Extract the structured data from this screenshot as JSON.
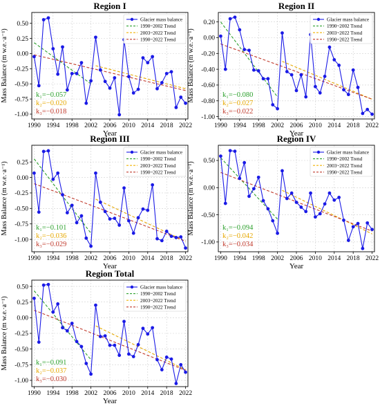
{
  "figure": {
    "ylabel": "Mass Balance (m w.e.·a⁻¹)",
    "xlabel": "Year",
    "legend_location": "top-right",
    "legend_entries": [
      {
        "label": "Glacier mass balance",
        "color": "#1a1ae6",
        "style": "line-marker"
      },
      {
        "label": "1990~2002 Trend",
        "color": "#2ca02c",
        "style": "dashed"
      },
      {
        "label": "2003~2022 Trend",
        "color": "#f2b200",
        "style": "dashed"
      },
      {
        "label": "1990~2022 Trend",
        "color": "#c0392b",
        "style": "dashed"
      }
    ],
    "colors": {
      "series": "#1a1ae6",
      "k1": "#2ca02c",
      "k2": "#e6a800",
      "k3": "#c0392b",
      "grid": "#cfcfcf"
    }
  },
  "chart_data": [
    {
      "type": "line",
      "title": "Region I",
      "x": [
        1990,
        1991,
        1992,
        1993,
        1994,
        1995,
        1996,
        1997,
        1998,
        1999,
        2000,
        2001,
        2002,
        2003,
        2004,
        2005,
        2006,
        2007,
        2008,
        2009,
        2010,
        2011,
        2012,
        2013,
        2014,
        2015,
        2016,
        2017,
        2018,
        2019,
        2020,
        2021,
        2022
      ],
      "values": [
        -0.05,
        -0.53,
        0.56,
        0.59,
        0.08,
        -0.34,
        0.11,
        -0.6,
        -0.33,
        -0.33,
        -0.15,
        -0.82,
        -0.45,
        0.27,
        -0.27,
        -0.46,
        -0.57,
        -0.4,
        -1.01,
        0.23,
        -0.38,
        -0.65,
        -0.59,
        -0.07,
        -0.15,
        -0.05,
        -0.58,
        -0.48,
        -0.33,
        -0.3,
        -0.89,
        -0.72,
        -0.82
      ],
      "xlim": [
        1989.5,
        2022.5
      ],
      "ylim": [
        -1.08,
        0.68
      ],
      "yticks": [
        -1.0,
        -0.75,
        -0.5,
        -0.25,
        0.0,
        0.25,
        0.5
      ],
      "ytick_labels": [
        "-1.00",
        "-0.75",
        "-0.50",
        "-0.25",
        "0.00",
        "0.25",
        "0.50"
      ],
      "xticks": [
        1990,
        1994,
        1998,
        2002,
        2006,
        2010,
        2014,
        2018,
        2022
      ],
      "trends": [
        {
          "name": "1990~2002 Trend",
          "x": [
            1990,
            2002
          ],
          "y": [
            0.18,
            -0.5
          ]
        },
        {
          "name": "2003~2022 Trend",
          "x": [
            2003,
            2022
          ],
          "y": [
            -0.2,
            -0.58
          ]
        },
        {
          "name": "1990~2022 Trend",
          "x": [
            1990,
            2022
          ],
          "y": [
            -0.02,
            -0.61
          ]
        }
      ],
      "slopes": [
        "k₁=−0.057",
        "k₂=−0.020",
        "k₃=−0.018"
      ],
      "grid": true,
      "legend": true
    },
    {
      "type": "line",
      "title": "Region II",
      "x": [
        1990,
        1991,
        1992,
        1993,
        1994,
        1995,
        1996,
        1997,
        1998,
        1999,
        2000,
        2001,
        2002,
        2003,
        2004,
        2005,
        2006,
        2007,
        2008,
        2009,
        2010,
        2011,
        2012,
        2013,
        2014,
        2015,
        2016,
        2017,
        2018,
        2019,
        2020,
        2021,
        2022
      ],
      "values": [
        0.02,
        -0.4,
        0.24,
        0.26,
        0.1,
        -0.15,
        -0.16,
        -0.41,
        -0.42,
        -0.52,
        -0.52,
        -0.85,
        -0.9,
        0.06,
        -0.43,
        -0.47,
        -0.67,
        -0.47,
        -0.75,
        0.04,
        -0.62,
        -0.7,
        -0.49,
        -0.12,
        -0.28,
        -0.35,
        -0.66,
        -0.72,
        -0.41,
        -0.63,
        -0.96,
        -0.91,
        -0.97
      ],
      "xlim": [
        1989.5,
        2022.5
      ],
      "ylim": [
        -1.03,
        0.32
      ],
      "yticks": [
        -1.0,
        -0.8,
        -0.6,
        -0.4,
        -0.2,
        0.0,
        0.2
      ],
      "ytick_labels": [
        "-1.00",
        "-0.80",
        "-0.60",
        "-0.40",
        "-0.20",
        "0.00",
        "0.20"
      ],
      "xticks": [
        1990,
        1994,
        1998,
        2002,
        2006,
        2010,
        2014,
        2018,
        2022
      ],
      "trends": [
        {
          "name": "1990~2002 Trend",
          "x": [
            1990,
            2002
          ],
          "y": [
            0.2,
            -0.75
          ]
        },
        {
          "name": "2003~2022 Trend",
          "x": [
            2003,
            2022
          ],
          "y": [
            -0.3,
            -0.78
          ]
        },
        {
          "name": "1990~2022 Trend",
          "x": [
            1990,
            2022
          ],
          "y": [
            -0.08,
            -0.78
          ]
        }
      ],
      "slopes": [
        "k₁=−0.080",
        "k₂=−0.027",
        "k₃=−0.022"
      ],
      "grid": true,
      "legend": true
    },
    {
      "type": "line",
      "title": "Region III",
      "x": [
        1990,
        1991,
        1992,
        1993,
        1994,
        1995,
        1996,
        1997,
        1998,
        1999,
        2000,
        2001,
        2002,
        2003,
        2004,
        2005,
        2006,
        2007,
        2008,
        2009,
        2010,
        2011,
        2012,
        2013,
        2014,
        2015,
        2016,
        2017,
        2018,
        2019,
        2020,
        2021,
        2022
      ],
      "values": [
        0.07,
        -0.56,
        0.42,
        0.43,
        -0.03,
        0.07,
        -0.28,
        -0.57,
        -0.45,
        -0.73,
        -0.62,
        -0.98,
        -1.11,
        0.07,
        -0.4,
        -0.55,
        -0.67,
        -0.66,
        -0.77,
        -0.17,
        -0.7,
        -0.9,
        -0.65,
        -0.51,
        -0.53,
        -0.12,
        -0.99,
        -1.02,
        -0.87,
        -0.95,
        -0.97,
        -0.96,
        -1.14
      ],
      "xlim": [
        1989.5,
        2022.5
      ],
      "ylim": [
        -1.2,
        0.52
      ],
      "yticks": [
        -1.0,
        -0.75,
        -0.5,
        -0.25,
        0.0,
        0.25
      ],
      "ytick_labels": [
        "-1.00",
        "-0.75",
        "-0.50",
        "-0.25",
        "0.00",
        "0.25"
      ],
      "xticks": [
        1990,
        1994,
        1998,
        2002,
        2006,
        2010,
        2014,
        2018,
        2022
      ],
      "trends": [
        {
          "name": "1990~2002 Trend",
          "x": [
            1990,
            2002
          ],
          "y": [
            0.3,
            -0.9
          ]
        },
        {
          "name": "2003~2022 Trend",
          "x": [
            2003,
            2022
          ],
          "y": [
            -0.35,
            -1.03
          ]
        },
        {
          "name": "1990~2022 Trend",
          "x": [
            1990,
            2022
          ],
          "y": [
            -0.1,
            -1.03
          ]
        }
      ],
      "slopes": [
        "k₁=−0.101",
        "k₂=−0.036",
        "k₃=−0.029"
      ],
      "grid": true,
      "legend": true
    },
    {
      "type": "line",
      "title": "Region IV",
      "x": [
        1990,
        1991,
        1992,
        1993,
        1994,
        1995,
        1996,
        1997,
        1998,
        1999,
        2000,
        2001,
        2002,
        2003,
        2004,
        2005,
        2006,
        2007,
        2008,
        2009,
        2010,
        2011,
        2012,
        2013,
        2014,
        2015,
        2016,
        2017,
        2018,
        2019,
        2020,
        2021,
        2022
      ],
      "values": [
        0.58,
        -0.29,
        0.68,
        0.67,
        0.17,
        0.46,
        -0.16,
        -0.02,
        0.19,
        -0.24,
        -0.39,
        -0.61,
        -0.84,
        0.31,
        -0.2,
        -0.1,
        -0.27,
        -0.36,
        -0.44,
        -0.1,
        -0.54,
        -0.48,
        -0.3,
        -0.1,
        -0.23,
        -0.18,
        -0.6,
        -0.97,
        -0.72,
        -0.66,
        -1.12,
        -0.65,
        -0.77
      ],
      "xlim": [
        1989.5,
        2022.5
      ],
      "ylim": [
        -1.18,
        0.78
      ],
      "yticks": [
        -1.0,
        -0.5,
        0.0,
        0.5
      ],
      "ytick_labels": [
        "-1.00",
        "-0.50",
        "0.00",
        "0.50"
      ],
      "xticks": [
        1990,
        1994,
        1998,
        2002,
        2006,
        2010,
        2014,
        2018,
        2022
      ],
      "trends": [
        {
          "name": "1990~2002 Trend",
          "x": [
            1990,
            2002
          ],
          "y": [
            0.55,
            -0.58
          ]
        },
        {
          "name": "2003~2022 Trend",
          "x": [
            2003,
            2022
          ],
          "y": [
            -0.05,
            -0.85
          ]
        },
        {
          "name": "1990~2022 Trend",
          "x": [
            1990,
            2022
          ],
          "y": [
            0.28,
            -0.8
          ]
        }
      ],
      "slopes": [
        "k₁=−0.094",
        "k₂=−0.042",
        "k₃=−0.034"
      ],
      "grid": true,
      "legend": true
    },
    {
      "type": "line",
      "title": "Region Total",
      "x": [
        1990,
        1991,
        1992,
        1993,
        1994,
        1995,
        1996,
        1997,
        1998,
        1999,
        2000,
        2001,
        2002,
        2003,
        2004,
        2005,
        2006,
        2007,
        2008,
        2009,
        2010,
        2011,
        2012,
        2013,
        2014,
        2015,
        2016,
        2017,
        2018,
        2019,
        2020,
        2021,
        2022
      ],
      "values": [
        0.31,
        -0.39,
        0.52,
        0.53,
        0.09,
        0.22,
        -0.16,
        -0.21,
        -0.09,
        -0.38,
        -0.46,
        -0.73,
        -0.9,
        0.2,
        -0.3,
        -0.29,
        -0.44,
        -0.44,
        -0.6,
        -0.06,
        -0.58,
        -0.62,
        -0.43,
        -0.17,
        -0.26,
        -0.16,
        -0.67,
        -0.83,
        -0.63,
        -0.66,
        -1.05,
        -0.75,
        -0.87
      ],
      "xlim": [
        1989.5,
        2022.5
      ],
      "ylim": [
        -1.1,
        0.6
      ],
      "yticks": [
        -1.0,
        -0.75,
        -0.5,
        -0.25,
        0.0,
        0.25,
        0.5
      ],
      "ytick_labels": [
        "-1.00",
        "-0.75",
        "-0.50",
        "-0.25",
        "0.00",
        "0.25",
        "0.50"
      ],
      "xticks": [
        1990,
        1994,
        1998,
        2002,
        2006,
        2010,
        2014,
        2018,
        2022
      ],
      "trends": [
        {
          "name": "1990~2002 Trend",
          "x": [
            1990,
            2002
          ],
          "y": [
            0.43,
            -0.67
          ]
        },
        {
          "name": "2003~2022 Trend",
          "x": [
            2003,
            2022
          ],
          "y": [
            -0.13,
            -0.83
          ]
        },
        {
          "name": "1990~2022 Trend",
          "x": [
            1990,
            2022
          ],
          "y": [
            0.12,
            -0.84
          ]
        }
      ],
      "slopes": [
        "k₁=−0.091",
        "k₂=−0.037",
        "k₃=−0.030"
      ],
      "grid": true,
      "legend": true
    }
  ]
}
